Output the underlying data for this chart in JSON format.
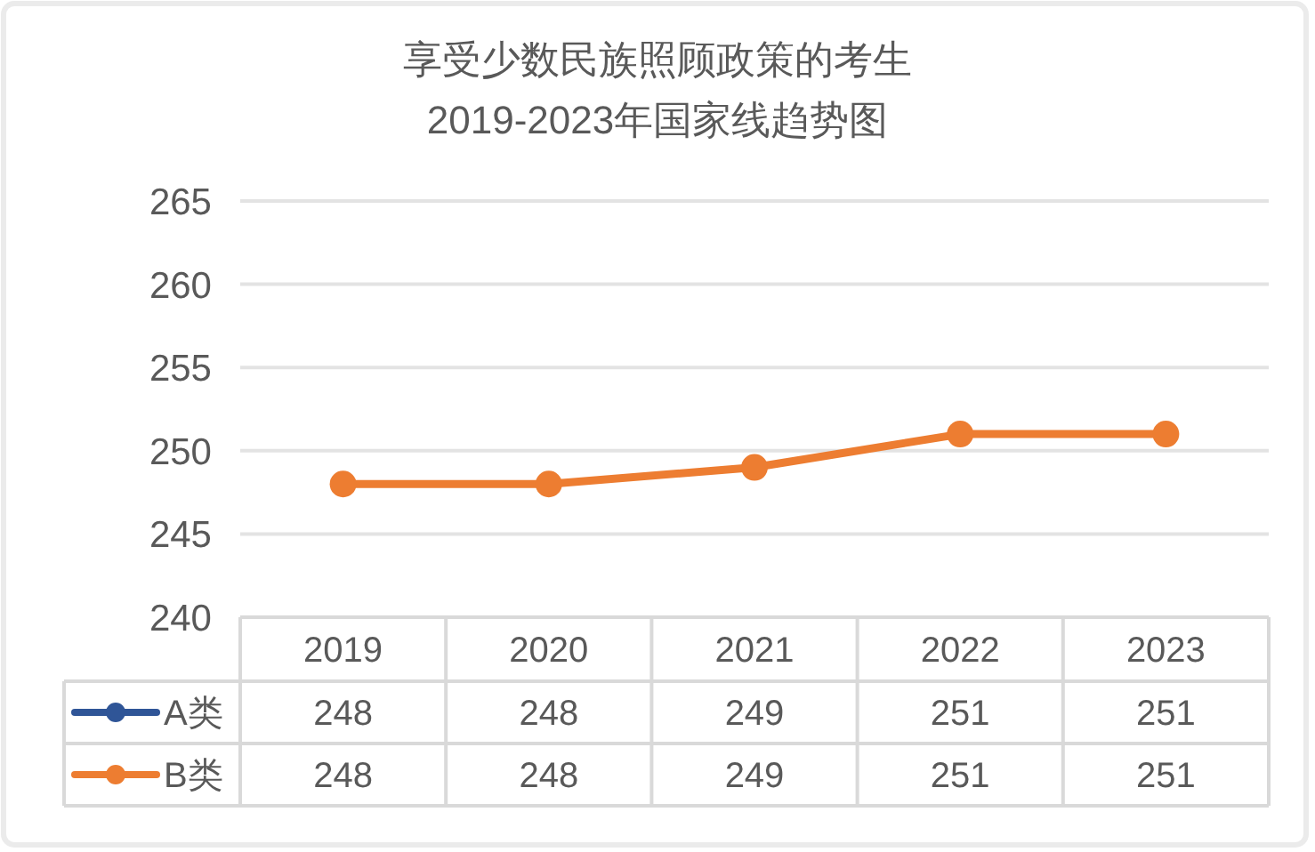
{
  "chart_data": {
    "type": "line",
    "title": "享受少数民族照顾政策的考生\n2019-2023年国家线趋势图",
    "categories": [
      "2019",
      "2020",
      "2021",
      "2022",
      "2023"
    ],
    "series": [
      {
        "name": "A类",
        "color": "#2f5597",
        "values": [
          null,
          null,
          null,
          null,
          null
        ],
        "value_labels": [
          "248",
          "248",
          "249",
          "251",
          "251"
        ]
      },
      {
        "name": "B类",
        "color": "#ed7d31",
        "values": [
          248,
          248,
          249,
          251,
          251
        ],
        "value_labels": [
          "248",
          "248",
          "249",
          "251",
          "251"
        ]
      }
    ],
    "ylim": [
      240,
      265
    ],
    "yticks": [
      240,
      245,
      250,
      255,
      260,
      265
    ],
    "grid": "y",
    "marker": "circle",
    "legend": "bottom"
  }
}
